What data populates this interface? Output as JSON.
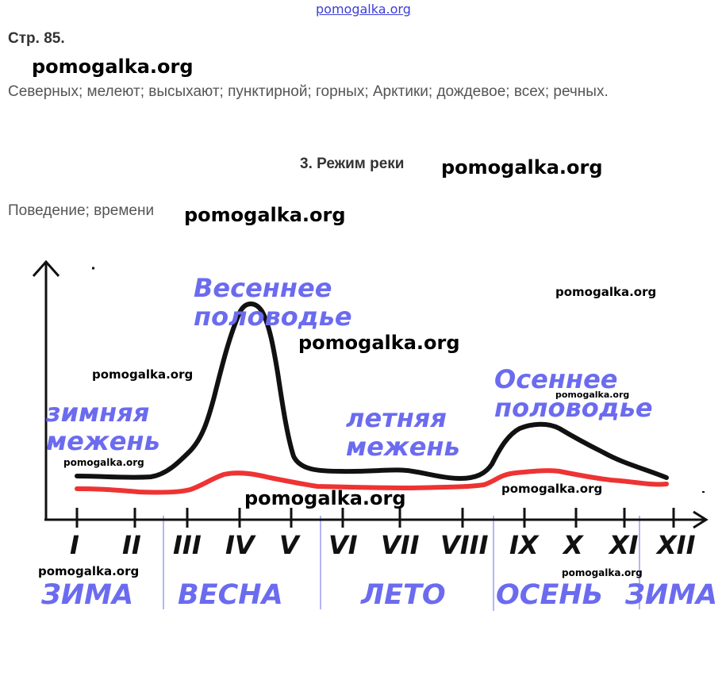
{
  "header": {
    "site": "pomogalka.org",
    "page_ref": "Стр. 85.",
    "answer_text": "Северных; мелеют; высыхают; пунктирной; горных; Арктики; дождевое;  всех; речных.",
    "section_title": "3. Режим реки",
    "answer_text_2": "Поведение; времени"
  },
  "watermark": "pomogalka.org",
  "diagram": {
    "labels": {
      "spring_flood": "Весеннее половодье",
      "autumn_flood": "Осеннее половодье",
      "winter_low": "зимняя межень",
      "summer_low": "летняя межень"
    },
    "months": [
      "I",
      "II",
      "III",
      "IV",
      "V",
      "VI",
      "VII",
      "VIII",
      "IX",
      "X",
      "XI",
      "XII"
    ],
    "seasons": [
      "ЗИМА",
      "ВЕСНА",
      "ЛЕТО",
      "ОСЕНЬ",
      "ЗИМА"
    ],
    "colors": {
      "high_curve": "#111111",
      "low_curve": "#ee3333",
      "label": "#6b6bf0",
      "axis": "#111111",
      "divider": "#6b6bf0"
    }
  }
}
